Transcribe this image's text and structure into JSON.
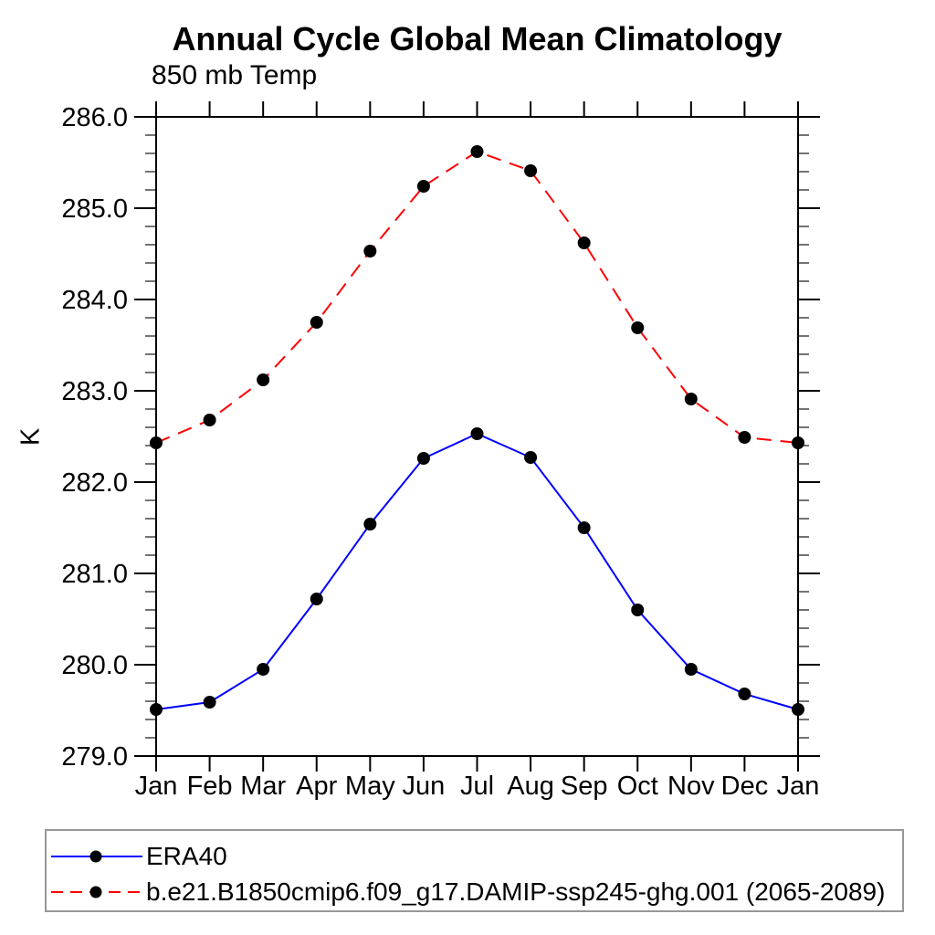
{
  "chart_data": {
    "type": "line",
    "title": "Annual Cycle Global Mean Climatology",
    "subtitle": "850 mb Temp",
    "ylabel": "K",
    "categories": [
      "Jan",
      "Feb",
      "Mar",
      "Apr",
      "May",
      "Jun",
      "Jul",
      "Aug",
      "Sep",
      "Oct",
      "Nov",
      "Dec",
      "Jan"
    ],
    "ylim": [
      279.0,
      286.0
    ],
    "y_major_step": 1.0,
    "y_minor_step": 0.2,
    "y_tick_labels": [
      "279.0",
      "280.0",
      "281.0",
      "282.0",
      "283.0",
      "284.0",
      "285.0",
      "286.0"
    ],
    "grid": false,
    "legend_position": "bottom-left",
    "axis_color": "#000000",
    "series": [
      {
        "name": "ERA40",
        "color": "#0000ff",
        "line_style": "solid",
        "marker": "circle",
        "marker_color": "#000000",
        "values": [
          279.51,
          279.59,
          279.95,
          280.72,
          281.54,
          282.26,
          282.53,
          282.27,
          281.5,
          280.6,
          279.95,
          279.68,
          279.51
        ]
      },
      {
        "name": "b.e21.B1850cmip6.f09_g17.DAMIP-ssp245-ghg.001 (2065-2089)",
        "color": "#ff0000",
        "line_style": "dashed",
        "marker": "circle",
        "marker_color": "#000000",
        "values": [
          282.43,
          282.68,
          283.12,
          283.75,
          284.53,
          285.24,
          285.62,
          285.41,
          284.62,
          283.69,
          282.91,
          282.49,
          282.43
        ]
      }
    ]
  }
}
